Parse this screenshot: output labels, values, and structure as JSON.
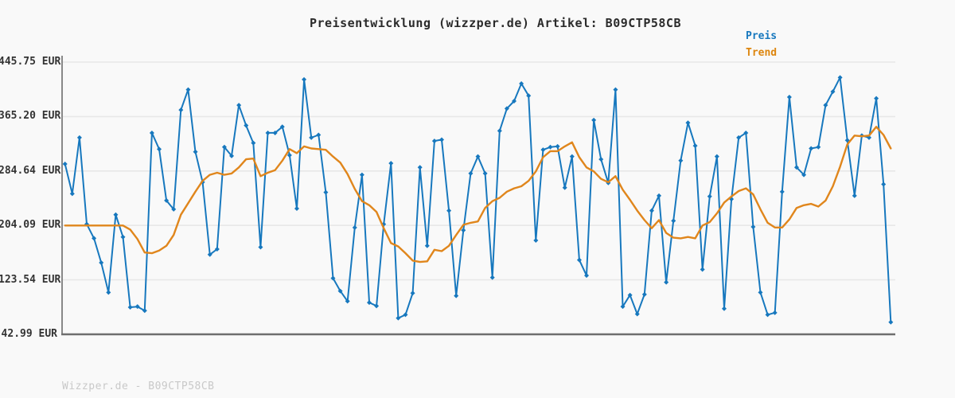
{
  "title": "Preisentwicklung (wizzper.de) Artikel: B09CTP58CB",
  "watermark": "Wizzper.de - B09CTP58CB",
  "legend": {
    "items": [
      {
        "label": "Preis",
        "color": "#1778be"
      },
      {
        "label": "Trend",
        "color": "#dd860f"
      }
    ]
  },
  "colors": {
    "background": "#f9f9f9",
    "gridline": "#e8e8e8",
    "y_axis_line": "#888888",
    "x_axis_line": "#6e6e6e",
    "tick_text": "#333333",
    "price_line": "#1778be",
    "trend_line": "#e0861c",
    "watermark_text": "#c9c9c9"
  },
  "chart_data": {
    "type": "line",
    "title": "Preisentwicklung (wizzper.de) Artikel: B09CTP58CB",
    "currency": "EUR",
    "ylim": [
      42.99,
      445.75
    ],
    "yticks": [
      445.75,
      365.2,
      284.64,
      204.09,
      123.54,
      42.99
    ],
    "ytick_labels": [
      "445.75 EUR",
      "365.20 EUR",
      "284.64 EUR",
      "204.09 EUR",
      "123.54 EUR",
      "42.99 EUR"
    ],
    "grid": true,
    "x_axis_labels_visible": false,
    "legend_position": "top-right",
    "series": [
      {
        "name": "Preis",
        "color": "#1778be",
        "marker": "diamond",
        "line_width": 2,
        "values": [
          295,
          251,
          334,
          206,
          185,
          149,
          105,
          220,
          187,
          83,
          84,
          78,
          341,
          317,
          241,
          228,
          375,
          405,
          313,
          268,
          161,
          169,
          320,
          307,
          382,
          352,
          326,
          172,
          341,
          341,
          350,
          308,
          229,
          420,
          334,
          338,
          253,
          126,
          107,
          92,
          201,
          279,
          90,
          85,
          206,
          296,
          67,
          72,
          104,
          290,
          174,
          329,
          331,
          226,
          100,
          197,
          281,
          306,
          281,
          127,
          344,
          377,
          388,
          414,
          396,
          182,
          316,
          320,
          321,
          260,
          306,
          153,
          130,
          360,
          302,
          267,
          405,
          84,
          101,
          73,
          102,
          226,
          248,
          120,
          211,
          300,
          356,
          322,
          139,
          247,
          306,
          81,
          243,
          334,
          341,
          202,
          105,
          72,
          75,
          254,
          394,
          290,
          279,
          318,
          320,
          382,
          402,
          423,
          330,
          248,
          337,
          334,
          392,
          265,
          61
        ]
      },
      {
        "name": "Trend",
        "color": "#e0861c",
        "marker": "none",
        "line_width": 2.4,
        "values": [
          204,
          204,
          204,
          204,
          204,
          204,
          204,
          204,
          204,
          198,
          184,
          164,
          163,
          167,
          174,
          190,
          220,
          237,
          254,
          270,
          279,
          282,
          279,
          281,
          290,
          302,
          303,
          277,
          282,
          286,
          300,
          317,
          311,
          321,
          318,
          317,
          316,
          306,
          297,
          280,
          258,
          240,
          234,
          224,
          200,
          178,
          173,
          163,
          152,
          150,
          151,
          168,
          166,
          174,
          190,
          205,
          208,
          210,
          230,
          240,
          245,
          254,
          259,
          262,
          270,
          284,
          305,
          314,
          314,
          321,
          327,
          305,
          290,
          284,
          273,
          268,
          277,
          257,
          242,
          226,
          212,
          200,
          212,
          193,
          186,
          185,
          187,
          185,
          204,
          209,
          222,
          238,
          247,
          255,
          259,
          250,
          228,
          208,
          201,
          201,
          213,
          230,
          234,
          236,
          232,
          241,
          262,
          291,
          324,
          337,
          336,
          337,
          350,
          338,
          318
        ]
      }
    ]
  }
}
